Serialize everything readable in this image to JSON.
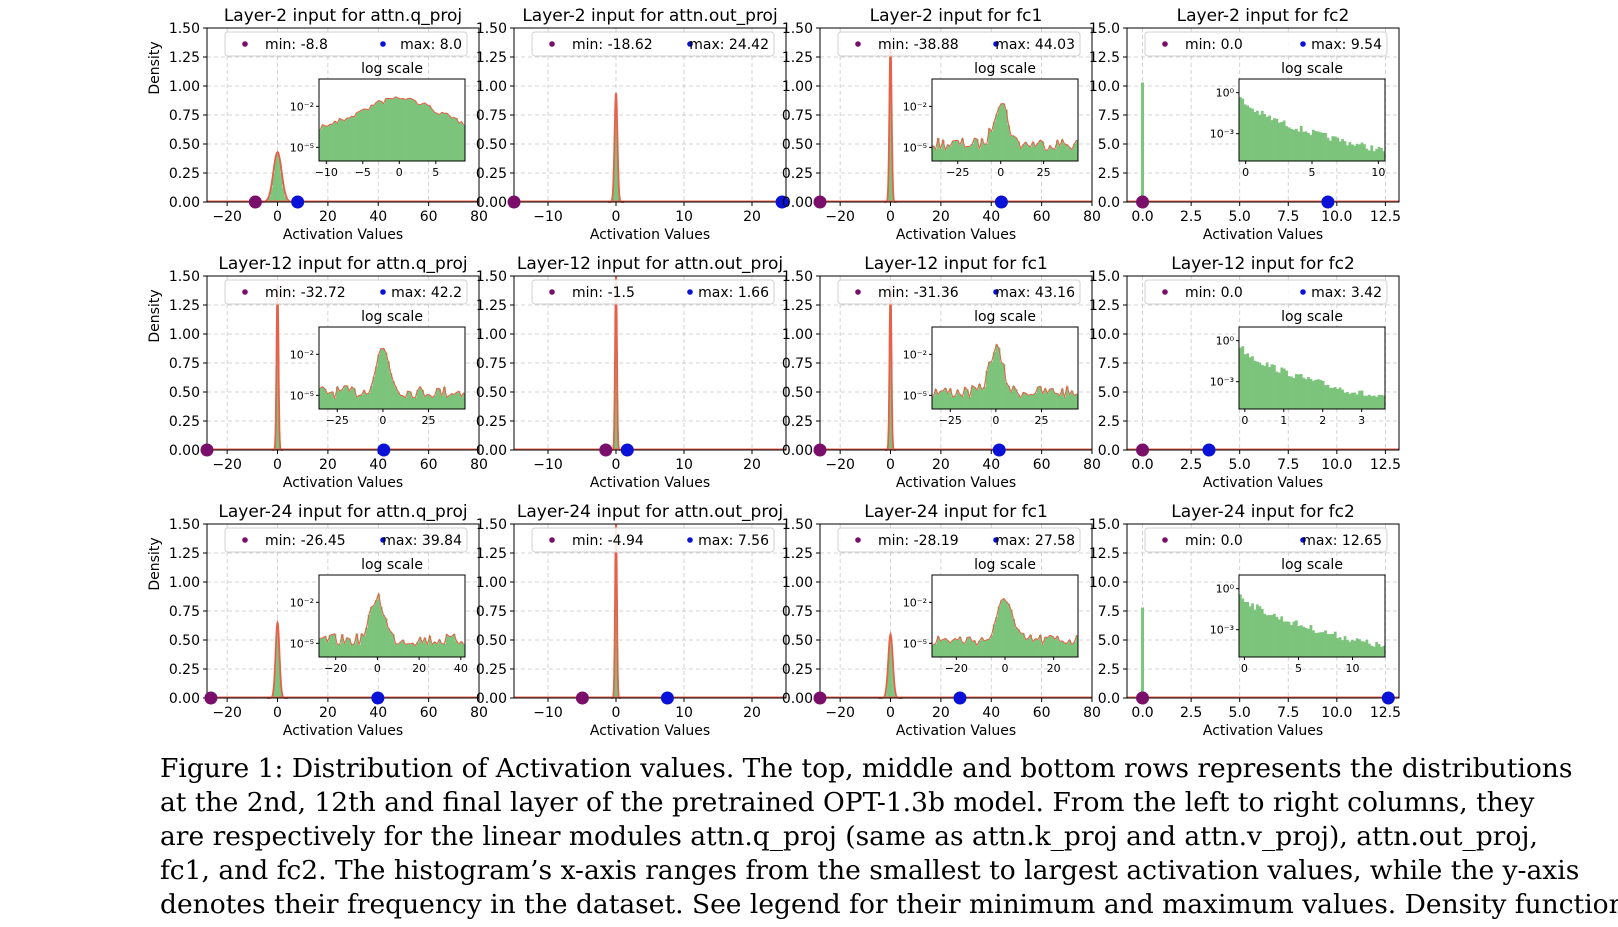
{
  "figure": {
    "xlabel": "Activation Values",
    "ylabel": "Density",
    "inset_title": "log scale",
    "colors": {
      "hist": "#7cc47c",
      "kde": "#e8604a",
      "min_marker": "#7a0f6b",
      "max_marker": "#0b12d8",
      "grid": "#c8c8c8"
    }
  },
  "chart_data": [
    {
      "type": "histogram",
      "title": "Layer-2 input for attn.q_proj",
      "xlim": [
        -28,
        80
      ],
      "xticks": [
        -20,
        0,
        20,
        40,
        60,
        80
      ],
      "xtick_labels": [
        "−20",
        "0",
        "20",
        "40",
        "60",
        "80"
      ],
      "ylim": [
        0,
        1.5
      ],
      "yticks": [
        0,
        0.25,
        0.5,
        0.75,
        1.0,
        1.25,
        1.5
      ],
      "ytick_labels": [
        "0.00",
        "0.25",
        "0.50",
        "0.75",
        "1.00",
        "1.25",
        "1.50"
      ],
      "min": -8.8,
      "max": 8.0,
      "legend_min": "min: -8.8",
      "legend_max": "max: 8.0",
      "peak": 0.43,
      "spread": 1.3,
      "show_ylabel": true,
      "inset": {
        "kind": "sym",
        "xlim": [
          -11,
          9
        ],
        "xticks": [
          -10,
          -5,
          0,
          5
        ],
        "xtick_labels": [
          "−10",
          "−5",
          "0",
          "5"
        ],
        "yticks": [
          -2,
          -5
        ],
        "ytick_labels": [
          "10⁻²",
          "10⁻⁵"
        ],
        "ylog": [
          -6,
          0
        ]
      }
    },
    {
      "type": "histogram",
      "title": "Layer-2 input for attn.out_proj",
      "xlim": [
        -15,
        25
      ],
      "xticks": [
        -10,
        0,
        10,
        20
      ],
      "xtick_labels": [
        "−10",
        "0",
        "10",
        "20"
      ],
      "ylim": [
        0,
        1.5
      ],
      "yticks": [
        0,
        0.25,
        0.5,
        0.75,
        1.0,
        1.25,
        1.5
      ],
      "ytick_labels": [
        "0.00",
        "0.25",
        "0.50",
        "0.75",
        "1.00",
        "1.25",
        "1.50"
      ],
      "min": -18.62,
      "max": 24.42,
      "legend_min": "min: -18.62",
      "legend_max": "max: 24.42",
      "peak": 0.94,
      "spread": 0.45,
      "show_ylabel": false,
      "inset": null
    },
    {
      "type": "histogram",
      "title": "Layer-2 input for fc1",
      "xlim": [
        -28,
        80
      ],
      "xticks": [
        -20,
        0,
        20,
        40,
        60,
        80
      ],
      "xtick_labels": [
        "−20",
        "0",
        "20",
        "40",
        "60",
        "80"
      ],
      "ylim": [
        0,
        1.5
      ],
      "yticks": [
        0,
        0.25,
        0.5,
        0.75,
        1.0,
        1.25,
        1.5
      ],
      "ytick_labels": [
        "0.00",
        "0.25",
        "0.50",
        "0.75",
        "1.00",
        "1.25",
        "1.50"
      ],
      "min": -38.88,
      "max": 44.03,
      "legend_min": "min: -38.88",
      "legend_max": "max: 44.03",
      "peak": 1.38,
      "spread": 0.35,
      "show_ylabel": false,
      "inset": {
        "kind": "sym",
        "xlim": [
          -40,
          45
        ],
        "xticks": [
          -25,
          0,
          25
        ],
        "xtick_labels": [
          "−25",
          "0",
          "25"
        ],
        "yticks": [
          -2,
          -5
        ],
        "ytick_labels": [
          "10⁻²",
          "10⁻⁵"
        ],
        "ylog": [
          -6,
          0
        ]
      }
    },
    {
      "type": "histogram",
      "title": "Layer-2 input for fc2",
      "xlim": [
        -0.8,
        13.2
      ],
      "xticks": [
        0,
        2.5,
        5,
        7.5,
        10,
        12.5
      ],
      "xtick_labels": [
        "0.0",
        "2.5",
        "5.0",
        "7.5",
        "10.0",
        "12.5"
      ],
      "ylim": [
        0,
        15
      ],
      "yticks": [
        0,
        2.5,
        5,
        7.5,
        10,
        12.5,
        15
      ],
      "ytick_labels": [
        "0.0",
        "2.5",
        "5.0",
        "7.5",
        "10.0",
        "12.5",
        "15.0"
      ],
      "min": 0.0,
      "max": 9.54,
      "legend_min": "min: 0.0",
      "legend_max": "max: 9.54",
      "peak": 10.3,
      "spread": 0.05,
      "show_ylabel": false,
      "inset": {
        "kind": "pos",
        "xlim": [
          -0.5,
          10.5
        ],
        "xticks": [
          0,
          5,
          10
        ],
        "xtick_labels": [
          "0",
          "5",
          "10"
        ],
        "yticks": [
          0,
          -3
        ],
        "ytick_labels": [
          "10⁰",
          "10⁻³"
        ],
        "ylog": [
          -5,
          1
        ]
      }
    },
    {
      "type": "histogram",
      "title": "Layer-12 input for attn.q_proj",
      "xlim": [
        -28,
        80
      ],
      "xticks": [
        -20,
        0,
        20,
        40,
        60,
        80
      ],
      "xtick_labels": [
        "−20",
        "0",
        "20",
        "40",
        "60",
        "80"
      ],
      "ylim": [
        0,
        1.5
      ],
      "yticks": [
        0,
        0.25,
        0.5,
        0.75,
        1.0,
        1.25,
        1.5
      ],
      "ytick_labels": [
        "0.00",
        "0.25",
        "0.50",
        "0.75",
        "1.00",
        "1.25",
        "1.50"
      ],
      "min": -32.72,
      "max": 42.2,
      "legend_min": "min: -32.72",
      "legend_max": "max: 42.2",
      "peak": 1.42,
      "spread": 0.3,
      "show_ylabel": true,
      "inset": {
        "kind": "sym",
        "xlim": [
          -35,
          45
        ],
        "xticks": [
          -25,
          0,
          25
        ],
        "xtick_labels": [
          "−25",
          "0",
          "25"
        ],
        "yticks": [
          -2,
          -5
        ],
        "ytick_labels": [
          "10⁻²",
          "10⁻⁵"
        ],
        "ylog": [
          -6,
          0
        ]
      }
    },
    {
      "type": "histogram",
      "title": "Layer-12 input for attn.out_proj",
      "xlim": [
        -15,
        25
      ],
      "xticks": [
        -10,
        0,
        10,
        20
      ],
      "xtick_labels": [
        "−10",
        "0",
        "10",
        "20"
      ],
      "ylim": [
        0,
        1.5
      ],
      "yticks": [
        0,
        0.25,
        0.5,
        0.75,
        1.0,
        1.25,
        1.5
      ],
      "ytick_labels": [
        "0.00",
        "0.25",
        "0.50",
        "0.75",
        "1.00",
        "1.25",
        "1.50"
      ],
      "min": -1.5,
      "max": 1.66,
      "legend_min": "min: -1.5",
      "legend_max": "max: 1.66",
      "peak": 1.5,
      "spread": 0.12,
      "show_ylabel": false,
      "inset": null
    },
    {
      "type": "histogram",
      "title": "Layer-12 input for fc1",
      "xlim": [
        -28,
        80
      ],
      "xticks": [
        -20,
        0,
        20,
        40,
        60,
        80
      ],
      "xtick_labels": [
        "−20",
        "0",
        "20",
        "40",
        "60",
        "80"
      ],
      "ylim": [
        0,
        1.5
      ],
      "yticks": [
        0,
        0.25,
        0.5,
        0.75,
        1.0,
        1.25,
        1.5
      ],
      "ytick_labels": [
        "0.00",
        "0.25",
        "0.50",
        "0.75",
        "1.00",
        "1.25",
        "1.50"
      ],
      "min": -31.36,
      "max": 43.16,
      "legend_min": "min: -31.36",
      "legend_max": "max: 43.16",
      "peak": 1.42,
      "spread": 0.3,
      "show_ylabel": false,
      "inset": {
        "kind": "sym",
        "xlim": [
          -35,
          45
        ],
        "xticks": [
          -25,
          0,
          25
        ],
        "xtick_labels": [
          "−25",
          "0",
          "25"
        ],
        "yticks": [
          -2,
          -5
        ],
        "ytick_labels": [
          "10⁻²",
          "10⁻⁵"
        ],
        "ylog": [
          -6,
          0
        ]
      }
    },
    {
      "type": "histogram",
      "title": "Layer-12 input for fc2",
      "xlim": [
        -0.8,
        13.2
      ],
      "xticks": [
        0,
        2.5,
        5,
        7.5,
        10,
        12.5
      ],
      "xtick_labels": [
        "0.0",
        "2.5",
        "5.0",
        "7.5",
        "10.0",
        "12.5"
      ],
      "ylim": [
        0,
        15
      ],
      "yticks": [
        0,
        2.5,
        5,
        7.5,
        10,
        12.5,
        15
      ],
      "ytick_labels": [
        "0.0",
        "2.5",
        "5.0",
        "7.5",
        "10.0",
        "12.5",
        "15.0"
      ],
      "min": 0.0,
      "max": 3.42,
      "legend_min": "min: 0.0",
      "legend_max": "max: 3.42",
      "peak": 0,
      "spread": 0.05,
      "show_ylabel": false,
      "inset": {
        "kind": "pos",
        "xlim": [
          -0.15,
          3.6
        ],
        "xticks": [
          0,
          1,
          2,
          3
        ],
        "xtick_labels": [
          "0",
          "1",
          "2",
          "3"
        ],
        "yticks": [
          0,
          -3
        ],
        "ytick_labels": [
          "10⁰",
          "10⁻³"
        ],
        "ylog": [
          -5,
          1
        ]
      }
    },
    {
      "type": "histogram",
      "title": "Layer-24 input for attn.q_proj",
      "xlim": [
        -28,
        80
      ],
      "xticks": [
        -20,
        0,
        20,
        40,
        60,
        80
      ],
      "xtick_labels": [
        "−20",
        "0",
        "20",
        "40",
        "60",
        "80"
      ],
      "ylim": [
        0,
        1.5
      ],
      "yticks": [
        0,
        0.25,
        0.5,
        0.75,
        1.0,
        1.25,
        1.5
      ],
      "ytick_labels": [
        "0.00",
        "0.25",
        "0.50",
        "0.75",
        "1.00",
        "1.25",
        "1.50"
      ],
      "min": -26.45,
      "max": 39.84,
      "legend_min": "min: -26.45",
      "legend_max": "max: 39.84",
      "peak": 0.65,
      "spread": 0.6,
      "show_ylabel": true,
      "inset": {
        "kind": "sym",
        "xlim": [
          -28,
          42
        ],
        "xticks": [
          -20,
          0,
          20,
          40
        ],
        "xtick_labels": [
          "−20",
          "0",
          "20",
          "40"
        ],
        "yticks": [
          -2,
          -5
        ],
        "ytick_labels": [
          "10⁻²",
          "10⁻⁵"
        ],
        "ylog": [
          -6,
          0
        ]
      }
    },
    {
      "type": "histogram",
      "title": "Layer-24 input for attn.out_proj",
      "xlim": [
        -15,
        25
      ],
      "xticks": [
        -10,
        0,
        10,
        20
      ],
      "xtick_labels": [
        "−10",
        "0",
        "10",
        "20"
      ],
      "ylim": [
        0,
        1.5
      ],
      "yticks": [
        0,
        0.25,
        0.5,
        0.75,
        1.0,
        1.25,
        1.5
      ],
      "ytick_labels": [
        "0.00",
        "0.25",
        "0.50",
        "0.75",
        "1.00",
        "1.25",
        "1.50"
      ],
      "min": -4.94,
      "max": 7.56,
      "legend_min": "min: -4.94",
      "legend_max": "max: 7.56",
      "peak": 1.5,
      "spread": 0.25,
      "show_ylabel": false,
      "inset": null
    },
    {
      "type": "histogram",
      "title": "Layer-24 input for fc1",
      "xlim": [
        -28,
        80
      ],
      "xticks": [
        -20,
        0,
        20,
        40,
        60,
        80
      ],
      "xtick_labels": [
        "−20",
        "0",
        "20",
        "40",
        "60",
        "80"
      ],
      "ylim": [
        0,
        1.5
      ],
      "yticks": [
        0,
        0.25,
        0.5,
        0.75,
        1.0,
        1.25,
        1.5
      ],
      "ytick_labels": [
        "0.00",
        "0.25",
        "0.50",
        "0.75",
        "1.00",
        "1.25",
        "1.50"
      ],
      "min": -28.19,
      "max": 27.58,
      "legend_min": "min: -28.19",
      "legend_max": "max: 27.58",
      "peak": 0.55,
      "spread": 0.7,
      "show_ylabel": false,
      "inset": {
        "kind": "sym",
        "xlim": [
          -30,
          30
        ],
        "xticks": [
          -20,
          0,
          20
        ],
        "xtick_labels": [
          "−20",
          "0",
          "20"
        ],
        "yticks": [
          -2,
          -5
        ],
        "ytick_labels": [
          "10⁻²",
          "10⁻⁵"
        ],
        "ylog": [
          -6,
          0
        ]
      }
    },
    {
      "type": "histogram",
      "title": "Layer-24 input for fc2",
      "xlim": [
        -0.8,
        13.2
      ],
      "xticks": [
        0,
        2.5,
        5,
        7.5,
        10,
        12.5
      ],
      "xtick_labels": [
        "0.0",
        "2.5",
        "5.0",
        "7.5",
        "10.0",
        "12.5"
      ],
      "ylim": [
        0,
        15
      ],
      "yticks": [
        0,
        2.5,
        5,
        7.5,
        10,
        12.5,
        15
      ],
      "ytick_labels": [
        "0.0",
        "2.5",
        "5.0",
        "7.5",
        "10.0",
        "12.5",
        "15.0"
      ],
      "min": 0.0,
      "max": 12.65,
      "legend_min": "min: 0.0",
      "legend_max": "max: 12.65",
      "peak": 7.8,
      "spread": 0.05,
      "show_ylabel": false,
      "inset": {
        "kind": "pos",
        "xlim": [
          -0.5,
          13
        ],
        "xticks": [
          0,
          5,
          10
        ],
        "xtick_labels": [
          "0",
          "5",
          "10"
        ],
        "yticks": [
          0,
          -3
        ],
        "ytick_labels": [
          "10⁰",
          "10⁻³"
        ],
        "ylog": [
          -5,
          1
        ]
      }
    }
  ],
  "caption": {
    "lines": [
      "Figure 1: Distribution of Activation values. The top, middle and bottom rows represents the distributions",
      "at the 2nd, 12th and final layer of the pretrained OPT-1.3b model. From the left to right columns, they",
      "are respectively for the linear modules attn.q_proj (same as attn.k_proj and attn.v_proj), attn.out_proj,",
      "fc1, and fc2. The histogram’s x-axis ranges from the smallest to largest activation values, while the y-axis",
      "denotes their frequency in the dataset. See legend for their minimum and maximum values. Density functions"
    ]
  }
}
